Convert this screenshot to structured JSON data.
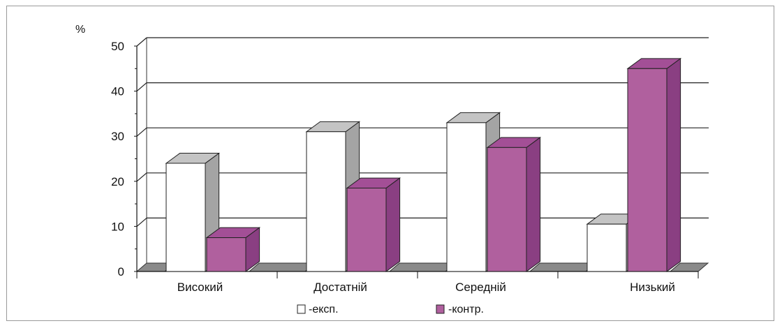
{
  "chart_data": {
    "type": "bar",
    "style": "3d-clustered-columns",
    "title": "",
    "xlabel": "",
    "ylabel": "%",
    "ylim": [
      0,
      50
    ],
    "yticks": [
      "0",
      "10",
      "20",
      "30",
      "40",
      "50"
    ],
    "categories": [
      "Високий",
      "Достатній",
      "Середній",
      "Низький"
    ],
    "series": [
      {
        "name": "-експ.",
        "color": "#ffffff",
        "values": [
          24,
          31,
          33,
          10.5
        ]
      },
      {
        "name": "-контр.",
        "color": "#b0609e",
        "values": [
          7.5,
          18.5,
          27.5,
          45
        ]
      }
    ],
    "grid": true,
    "legend": "bottom-center"
  }
}
